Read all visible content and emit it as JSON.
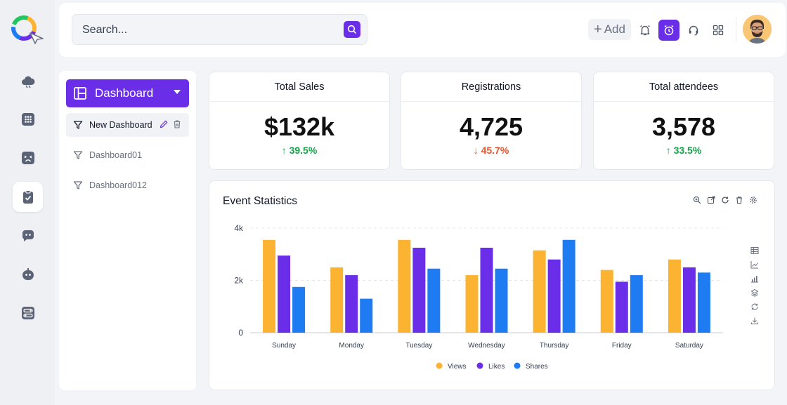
{
  "header": {
    "search_placeholder": "Search...",
    "add_label": "Add"
  },
  "sidebar": {
    "items": [
      "cloud-icon",
      "apps-grid-icon",
      "face-icon",
      "clipboard-check-icon",
      "chat-bot-icon",
      "bot-icon",
      "toggle-list-icon"
    ],
    "active": "clipboard-check-icon"
  },
  "panel": {
    "dashboard_label": "Dashboard",
    "items": [
      {
        "label": "New Dashboard",
        "selected": true
      },
      {
        "label": "Dashboard01",
        "selected": false
      },
      {
        "label": "Dashboard012",
        "selected": false
      }
    ]
  },
  "stats": [
    {
      "title": "Total Sales",
      "value": "$132k",
      "change": "39.5%",
      "direction": "up",
      "color": "#16a34a"
    },
    {
      "title": "Registrations",
      "value": "4,725",
      "change": "45.7%",
      "direction": "down",
      "color": "#e5532d"
    },
    {
      "title": "Total attendees",
      "value": "3,578",
      "change": "33.5%",
      "direction": "up",
      "color": "#16a34a"
    }
  ],
  "colors": {
    "accent": "#6a2ee8",
    "views": "#fbb331",
    "likes": "#6a2ee8",
    "shares": "#1e7bf2"
  },
  "chart_data": {
    "type": "bar",
    "title": "Event Statistics",
    "categories": [
      "Sunday",
      "Monday",
      "Tuesday",
      "Wednesday",
      "Thursday",
      "Friday",
      "Saturday"
    ],
    "series": [
      {
        "name": "Views",
        "values": [
          3550,
          2500,
          3550,
          2200,
          3150,
          2400,
          2800
        ]
      },
      {
        "name": "Likes",
        "values": [
          2950,
          2200,
          3250,
          3250,
          2800,
          1950,
          2500
        ]
      },
      {
        "name": "Shares",
        "values": [
          1750,
          1300,
          2450,
          2450,
          3550,
          2200,
          2300
        ]
      }
    ],
    "yticks": [
      "0",
      "2k",
      "4k"
    ],
    "ylim": [
      0,
      4000
    ],
    "grid": true,
    "legend": "bottom"
  }
}
